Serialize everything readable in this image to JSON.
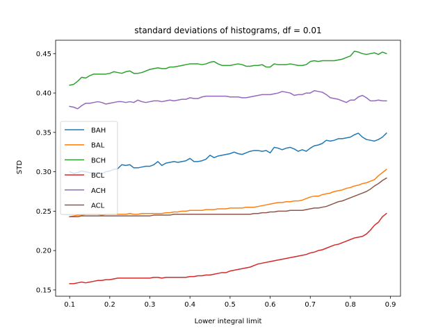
{
  "chart_data": {
    "type": "line",
    "title": "standard deviations of histograms, df = 0.01",
    "xlabel": "Lower integral limit",
    "ylabel": "STD",
    "xlim": [
      0.065,
      0.925
    ],
    "ylim": [
      0.142,
      0.467
    ],
    "grid": false,
    "legend_position": "center-left",
    "xticks": [
      "0.1",
      "0.2",
      "0.3",
      "0.4",
      "0.5",
      "0.6",
      "0.7",
      "0.8",
      "0.9"
    ],
    "yticks": [
      "0.15",
      "0.20",
      "0.25",
      "0.30",
      "0.35",
      "0.40",
      "0.45"
    ],
    "x": [
      0.1,
      0.11,
      0.12,
      0.13,
      0.14,
      0.15,
      0.16,
      0.17,
      0.18,
      0.19,
      0.2,
      0.21,
      0.22,
      0.23,
      0.24,
      0.25,
      0.26,
      0.27,
      0.28,
      0.29,
      0.3,
      0.31,
      0.32,
      0.33,
      0.34,
      0.35,
      0.36,
      0.37,
      0.38,
      0.39,
      0.4,
      0.41,
      0.42,
      0.43,
      0.44,
      0.45,
      0.46,
      0.47,
      0.48,
      0.49,
      0.5,
      0.51,
      0.52,
      0.53,
      0.54,
      0.55,
      0.56,
      0.57,
      0.58,
      0.59,
      0.6,
      0.61,
      0.62,
      0.63,
      0.64,
      0.65,
      0.66,
      0.67,
      0.68,
      0.69,
      0.7,
      0.71,
      0.72,
      0.73,
      0.74,
      0.75,
      0.76,
      0.77,
      0.78,
      0.79,
      0.8,
      0.81,
      0.82,
      0.83,
      0.84,
      0.85,
      0.86,
      0.87,
      0.88,
      0.89
    ],
    "series": [
      {
        "name": "BAH",
        "color": "#1f77b4",
        "values": [
          0.3,
          0.298,
          0.299,
          0.301,
          0.3,
          0.299,
          0.298,
          0.299,
          0.297,
          0.3,
          0.301,
          0.303,
          0.304,
          0.309,
          0.308,
          0.309,
          0.305,
          0.305,
          0.306,
          0.307,
          0.307,
          0.309,
          0.313,
          0.308,
          0.311,
          0.312,
          0.313,
          0.312,
          0.313,
          0.314,
          0.317,
          0.313,
          0.313,
          0.314,
          0.316,
          0.321,
          0.318,
          0.32,
          0.321,
          0.322,
          0.323,
          0.325,
          0.323,
          0.322,
          0.324,
          0.326,
          0.327,
          0.327,
          0.326,
          0.327,
          0.324,
          0.331,
          0.33,
          0.328,
          0.33,
          0.331,
          0.329,
          0.326,
          0.328,
          0.326,
          0.33,
          0.333,
          0.334,
          0.336,
          0.34,
          0.339,
          0.34,
          0.342,
          0.342,
          0.343,
          0.344,
          0.347,
          0.349,
          0.344,
          0.341,
          0.34,
          0.339,
          0.341,
          0.344,
          0.349
        ]
      },
      {
        "name": "BAL",
        "color": "#ff7f0e",
        "values": [
          0.243,
          0.244,
          0.245,
          0.245,
          0.246,
          0.246,
          0.246,
          0.246,
          0.245,
          0.246,
          0.246,
          0.246,
          0.246,
          0.246,
          0.246,
          0.247,
          0.246,
          0.246,
          0.247,
          0.247,
          0.247,
          0.247,
          0.247,
          0.247,
          0.248,
          0.248,
          0.249,
          0.249,
          0.25,
          0.25,
          0.251,
          0.251,
          0.251,
          0.251,
          0.252,
          0.252,
          0.252,
          0.253,
          0.253,
          0.253,
          0.254,
          0.254,
          0.254,
          0.254,
          0.255,
          0.255,
          0.255,
          0.256,
          0.257,
          0.258,
          0.259,
          0.26,
          0.261,
          0.261,
          0.262,
          0.262,
          0.263,
          0.263,
          0.264,
          0.266,
          0.268,
          0.269,
          0.269,
          0.271,
          0.272,
          0.273,
          0.275,
          0.276,
          0.277,
          0.279,
          0.28,
          0.282,
          0.283,
          0.285,
          0.286,
          0.288,
          0.29,
          0.295,
          0.299,
          0.303
        ]
      },
      {
        "name": "BCH",
        "color": "#2ca02c",
        "values": [
          0.41,
          0.411,
          0.415,
          0.42,
          0.419,
          0.422,
          0.424,
          0.424,
          0.424,
          0.424,
          0.425,
          0.427,
          0.426,
          0.425,
          0.427,
          0.428,
          0.425,
          0.425,
          0.426,
          0.428,
          0.43,
          0.431,
          0.432,
          0.431,
          0.431,
          0.433,
          0.433,
          0.434,
          0.435,
          0.436,
          0.437,
          0.437,
          0.437,
          0.436,
          0.437,
          0.439,
          0.44,
          0.437,
          0.435,
          0.435,
          0.435,
          0.436,
          0.437,
          0.436,
          0.434,
          0.434,
          0.435,
          0.435,
          0.436,
          0.433,
          0.433,
          0.437,
          0.436,
          0.436,
          0.436,
          0.437,
          0.436,
          0.435,
          0.435,
          0.436,
          0.44,
          0.441,
          0.44,
          0.441,
          0.441,
          0.441,
          0.441,
          0.442,
          0.443,
          0.445,
          0.447,
          0.453,
          0.452,
          0.45,
          0.449,
          0.45,
          0.451,
          0.449,
          0.452,
          0.45
        ]
      },
      {
        "name": "BCL",
        "color": "#d62728",
        "values": [
          0.158,
          0.158,
          0.159,
          0.16,
          0.159,
          0.16,
          0.161,
          0.162,
          0.162,
          0.163,
          0.163,
          0.164,
          0.165,
          0.165,
          0.165,
          0.165,
          0.165,
          0.165,
          0.165,
          0.165,
          0.165,
          0.166,
          0.166,
          0.165,
          0.166,
          0.166,
          0.166,
          0.166,
          0.166,
          0.166,
          0.167,
          0.167,
          0.168,
          0.168,
          0.169,
          0.169,
          0.17,
          0.171,
          0.172,
          0.172,
          0.174,
          0.175,
          0.176,
          0.177,
          0.178,
          0.179,
          0.181,
          0.183,
          0.184,
          0.185,
          0.186,
          0.187,
          0.188,
          0.189,
          0.19,
          0.191,
          0.192,
          0.193,
          0.194,
          0.195,
          0.197,
          0.198,
          0.2,
          0.201,
          0.203,
          0.205,
          0.207,
          0.208,
          0.21,
          0.212,
          0.214,
          0.216,
          0.217,
          0.218,
          0.221,
          0.226,
          0.232,
          0.236,
          0.243,
          0.247
        ]
      },
      {
        "name": "ACH",
        "color": "#9467bd",
        "values": [
          0.383,
          0.382,
          0.38,
          0.384,
          0.387,
          0.387,
          0.388,
          0.389,
          0.388,
          0.386,
          0.387,
          0.388,
          0.389,
          0.389,
          0.388,
          0.389,
          0.388,
          0.391,
          0.389,
          0.388,
          0.389,
          0.39,
          0.39,
          0.389,
          0.39,
          0.391,
          0.39,
          0.391,
          0.392,
          0.392,
          0.394,
          0.393,
          0.393,
          0.395,
          0.396,
          0.396,
          0.396,
          0.396,
          0.396,
          0.396,
          0.395,
          0.395,
          0.395,
          0.394,
          0.394,
          0.395,
          0.396,
          0.397,
          0.398,
          0.398,
          0.398,
          0.399,
          0.4,
          0.402,
          0.401,
          0.4,
          0.397,
          0.398,
          0.398,
          0.4,
          0.4,
          0.403,
          0.402,
          0.401,
          0.398,
          0.394,
          0.393,
          0.392,
          0.39,
          0.388,
          0.391,
          0.391,
          0.395,
          0.397,
          0.394,
          0.39,
          0.39,
          0.391,
          0.39,
          0.39
        ]
      },
      {
        "name": "ACL",
        "color": "#8c564b",
        "values": [
          0.243,
          0.243,
          0.243,
          0.244,
          0.244,
          0.244,
          0.244,
          0.244,
          0.244,
          0.244,
          0.244,
          0.244,
          0.244,
          0.244,
          0.244,
          0.244,
          0.244,
          0.244,
          0.244,
          0.244,
          0.244,
          0.245,
          0.245,
          0.245,
          0.245,
          0.245,
          0.246,
          0.246,
          0.246,
          0.246,
          0.246,
          0.246,
          0.246,
          0.246,
          0.246,
          0.246,
          0.246,
          0.246,
          0.246,
          0.246,
          0.246,
          0.246,
          0.246,
          0.246,
          0.246,
          0.246,
          0.247,
          0.247,
          0.248,
          0.248,
          0.249,
          0.249,
          0.25,
          0.25,
          0.25,
          0.251,
          0.251,
          0.251,
          0.251,
          0.252,
          0.253,
          0.254,
          0.254,
          0.255,
          0.256,
          0.258,
          0.26,
          0.262,
          0.263,
          0.265,
          0.267,
          0.269,
          0.271,
          0.273,
          0.275,
          0.278,
          0.282,
          0.285,
          0.289,
          0.292
        ]
      }
    ]
  }
}
